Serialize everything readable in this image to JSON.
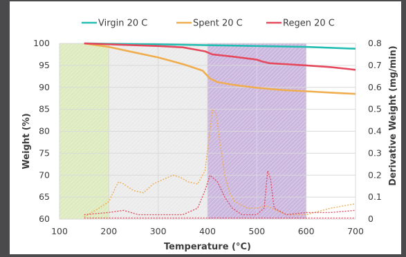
{
  "chart_data": {
    "type": "line",
    "title": "",
    "xlabel": "Temperature (°C)",
    "ylabel": "Weight (%)",
    "y2label": "Derivative Weight (mg/min)",
    "xlim": [
      100,
      700
    ],
    "ylim": [
      60,
      100
    ],
    "y2lim": [
      0,
      0.8
    ],
    "x_ticks": [
      100,
      200,
      300,
      400,
      500,
      600,
      700
    ],
    "y_ticks": [
      60,
      65,
      70,
      75,
      80,
      85,
      90,
      95,
      100
    ],
    "y2_ticks": [
      "0",
      "0.1",
      "0.2",
      "0.3",
      "0.4",
      "0.5",
      "0.6",
      "0.7",
      "0.8"
    ],
    "legend_position": "top",
    "shaded_regions": [
      {
        "x_start": 100,
        "x_end": 200,
        "color": "#d7e6b2",
        "pattern": "hatched"
      },
      {
        "x_start": 200,
        "x_end": 400,
        "color": "#e8e8e8",
        "pattern": "hatched"
      },
      {
        "x_start": 400,
        "x_end": 600,
        "color": "#c2a9d8",
        "pattern": "hatched"
      }
    ],
    "series": [
      {
        "name": "Virgin 20 C",
        "axis": "left",
        "color": "#22bdb2",
        "x": [
          150,
          200,
          300,
          400,
          500,
          600,
          700
        ],
        "values": [
          100,
          99.9,
          99.8,
          99.6,
          99.4,
          99.2,
          98.8
        ]
      },
      {
        "name": "Spent 20 C",
        "axis": "left",
        "color": "#f0ad4e",
        "x": [
          150,
          200,
          250,
          300,
          350,
          390,
          405,
          420,
          450,
          500,
          550,
          600,
          650,
          700
        ],
        "values": [
          100,
          99.2,
          98,
          96.8,
          95.3,
          93.8,
          92,
          91.2,
          90.6,
          89.9,
          89.4,
          89.1,
          88.8,
          88.5
        ]
      },
      {
        "name": "Regen 20 C",
        "axis": "left",
        "color": "#e5485c",
        "x": [
          150,
          200,
          300,
          350,
          395,
          410,
          450,
          500,
          510,
          525,
          600,
          650,
          700
        ],
        "values": [
          100,
          99.8,
          99.4,
          99.1,
          98.2,
          97.5,
          97,
          96.3,
          95.9,
          95.5,
          95,
          94.6,
          94
        ]
      },
      {
        "name": "Spent 20 C derivative",
        "axis": "right",
        "color": "#f0ad4e",
        "dashed": true,
        "x": [
          150,
          180,
          200,
          215,
          220,
          230,
          250,
          270,
          290,
          310,
          330,
          345,
          360,
          380,
          395,
          405,
          410,
          418,
          425,
          435,
          445,
          455,
          480,
          500,
          520,
          540,
          560,
          600,
          650,
          700
        ],
        "values": [
          0.01,
          0.05,
          0.08,
          0.15,
          0.17,
          0.16,
          0.13,
          0.12,
          0.16,
          0.18,
          0.2,
          0.19,
          0.17,
          0.16,
          0.22,
          0.4,
          0.5,
          0.48,
          0.35,
          0.2,
          0.12,
          0.08,
          0.05,
          0.05,
          0.06,
          0.04,
          0.02,
          0.02,
          0.05,
          0.07
        ]
      },
      {
        "name": "Regen 20 C derivative",
        "axis": "right",
        "color": "#e5485c",
        "dashed": true,
        "x": [
          150,
          200,
          230,
          260,
          300,
          350,
          380,
          395,
          405,
          420,
          435,
          450,
          470,
          500,
          515,
          522,
          528,
          535,
          560,
          600,
          650,
          700
        ],
        "values": [
          0.02,
          0.03,
          0.04,
          0.02,
          0.02,
          0.02,
          0.05,
          0.13,
          0.2,
          0.17,
          0.1,
          0.05,
          0.02,
          0.02,
          0.05,
          0.22,
          0.18,
          0.05,
          0.02,
          0.03,
          0.03,
          0.04
        ]
      },
      {
        "name": "Virgin 20 C derivative",
        "axis": "right",
        "color": "#e5485c",
        "dashed": true,
        "x": [
          150,
          300,
          450,
          600,
          700
        ],
        "values": [
          0.005,
          0.005,
          0.005,
          0.005,
          0.005
        ]
      }
    ]
  },
  "legend": [
    {
      "label": "Virgin 20 C",
      "color": "#22bdb2"
    },
    {
      "label": "Spent 20 C",
      "color": "#f0ad4e"
    },
    {
      "label": "Regen 20 C",
      "color": "#e5485c"
    }
  ]
}
